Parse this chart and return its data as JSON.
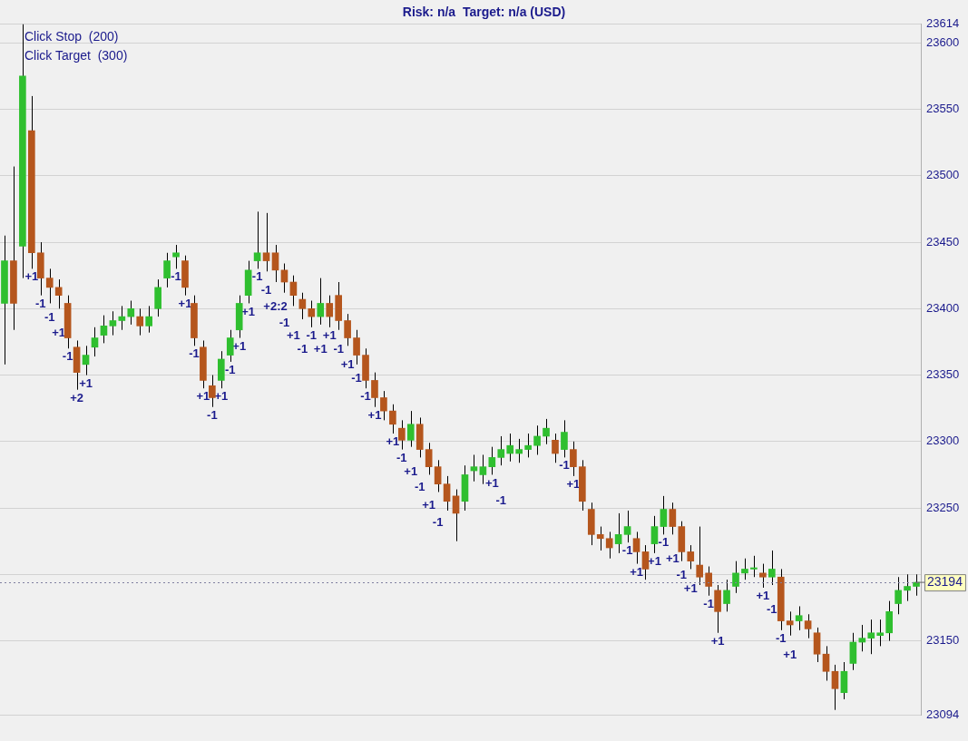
{
  "chart_data": {
    "type": "candlestick",
    "title": "Risk: n/a  Target: n/a (USD)",
    "categories": [
      null,
      null,
      null,
      null,
      null,
      null,
      null,
      null,
      null,
      null,
      null,
      null,
      null,
      null,
      null,
      null,
      null,
      null,
      null,
      null,
      null,
      null,
      null,
      null,
      null,
      null,
      null,
      null,
      null,
      null,
      null,
      null,
      null,
      null,
      null,
      null,
      null,
      null,
      null,
      null,
      null,
      null,
      null,
      null,
      null,
      null,
      null,
      null,
      null,
      null,
      null,
      null,
      null,
      null,
      null,
      null,
      null,
      null,
      null,
      null,
      null,
      null,
      null,
      null,
      null,
      null,
      null,
      null,
      null,
      null,
      null,
      null,
      null,
      null,
      null,
      null,
      null,
      null,
      null,
      null,
      null,
      null,
      null,
      null,
      null,
      null,
      null,
      null,
      null,
      null,
      null,
      null,
      null,
      null,
      null,
      null,
      null,
      null,
      null,
      null,
      null,
      null
    ],
    "value_labels": [
      null,
      null,
      null,
      "+1",
      "-1",
      "-1",
      "+1",
      "-1",
      "+2",
      "+1",
      null,
      null,
      null,
      null,
      null,
      null,
      null,
      null,
      null,
      "-1",
      "+1",
      "-1",
      "+1",
      "-1",
      "+1",
      "-1",
      "+1",
      "+1",
      "-1",
      "-1",
      "+2:2",
      "-1",
      "+1",
      "-1",
      "-1",
      "+1",
      "+1",
      "-1",
      "+1",
      "-1",
      "-1",
      "+1",
      null,
      "+1",
      "-1",
      "+1",
      "-1",
      "+1",
      "-1",
      null,
      null,
      null,
      null,
      null,
      "+1",
      "-1",
      null,
      null,
      null,
      null,
      null,
      null,
      "-1",
      "+1",
      null,
      null,
      null,
      null,
      null,
      "-1",
      "+1",
      null,
      "+1",
      "-1",
      "+1",
      "-1",
      "+1",
      null,
      "-1",
      "+1",
      null,
      null,
      null,
      null,
      "+1",
      "-1",
      "-1",
      "+1",
      null,
      null,
      null,
      null,
      null,
      null,
      null,
      null,
      null,
      null,
      null,
      null,
      null,
      null
    ],
    "ohlc": [
      [
        23404,
        23455,
        23358,
        23436
      ],
      [
        23436,
        23507,
        23384,
        23404
      ],
      [
        23447,
        23614,
        23423,
        23575
      ],
      [
        23534,
        23560,
        23430,
        23442
      ],
      [
        23442,
        23450,
        23410,
        23423
      ],
      [
        23423,
        23430,
        23404,
        23416
      ],
      [
        23416,
        23422,
        23400,
        23410
      ],
      [
        23404,
        23410,
        23370,
        23378
      ],
      [
        23371,
        23376,
        23339,
        23352
      ],
      [
        23358,
        23372,
        23350,
        23365
      ],
      [
        23371,
        23386,
        23364,
        23378
      ],
      [
        23380,
        23395,
        23374,
        23387
      ],
      [
        23387,
        23398,
        23380,
        23391
      ],
      [
        23391,
        23402,
        23384,
        23394
      ],
      [
        23394,
        23406,
        23388,
        23400
      ],
      [
        23394,
        23400,
        23380,
        23387
      ],
      [
        23387,
        23402,
        23382,
        23394
      ],
      [
        23400,
        23422,
        23394,
        23416
      ],
      [
        23423,
        23442,
        23416,
        23436
      ],
      [
        23439,
        23448,
        23430,
        23442
      ],
      [
        23436,
        23440,
        23410,
        23416
      ],
      [
        23404,
        23410,
        23372,
        23378
      ],
      [
        23371,
        23376,
        23340,
        23346
      ],
      [
        23342,
        23350,
        23326,
        23333
      ],
      [
        23346,
        23368,
        23340,
        23362
      ],
      [
        23365,
        23384,
        23360,
        23378
      ],
      [
        23384,
        23410,
        23378,
        23404
      ],
      [
        23410,
        23436,
        23404,
        23429
      ],
      [
        23436,
        23473,
        23430,
        23442
      ],
      [
        23442,
        23472,
        23428,
        23436
      ],
      [
        23442,
        23448,
        23420,
        23429
      ],
      [
        23429,
        23434,
        23412,
        23420
      ],
      [
        23420,
        23425,
        23402,
        23410
      ],
      [
        23407,
        23412,
        23392,
        23400
      ],
      [
        23400,
        23406,
        23386,
        23394
      ],
      [
        23394,
        23423,
        23388,
        23404
      ],
      [
        23404,
        23410,
        23386,
        23394
      ],
      [
        23410,
        23420,
        23384,
        23391
      ],
      [
        23391,
        23396,
        23372,
        23378
      ],
      [
        23378,
        23384,
        23358,
        23365
      ],
      [
        23365,
        23370,
        23340,
        23346
      ],
      [
        23346,
        23352,
        23326,
        23333
      ],
      [
        23333,
        23338,
        23316,
        23323
      ],
      [
        23323,
        23328,
        23306,
        23313
      ],
      [
        23310,
        23316,
        23294,
        23301
      ],
      [
        23301,
        23323,
        23296,
        23313
      ],
      [
        23313,
        23318,
        23288,
        23294
      ],
      [
        23294,
        23299,
        23275,
        23281
      ],
      [
        23281,
        23286,
        23262,
        23268
      ],
      [
        23268,
        23274,
        23248,
        23255
      ],
      [
        23259,
        23264,
        23225,
        23246
      ],
      [
        23255,
        23282,
        23248,
        23275
      ],
      [
        23278,
        23290,
        23270,
        23281
      ],
      [
        23275,
        23290,
        23268,
        23281
      ],
      [
        23281,
        23296,
        23275,
        23288
      ],
      [
        23288,
        23304,
        23282,
        23294
      ],
      [
        23291,
        23306,
        23285,
        23297
      ],
      [
        23291,
        23302,
        23284,
        23294
      ],
      [
        23294,
        23306,
        23288,
        23297
      ],
      [
        23297,
        23312,
        23290,
        23304
      ],
      [
        23304,
        23317,
        23298,
        23310
      ],
      [
        23301,
        23306,
        23284,
        23291
      ],
      [
        23294,
        23316,
        23288,
        23307
      ],
      [
        23294,
        23300,
        23274,
        23281
      ],
      [
        23281,
        23286,
        23248,
        23255
      ],
      [
        23249,
        23254,
        23222,
        23230
      ],
      [
        23230,
        23236,
        23218,
        23227
      ],
      [
        23227,
        23232,
        23212,
        23220
      ],
      [
        23223,
        23246,
        23216,
        23230
      ],
      [
        23230,
        23248,
        23224,
        23236
      ],
      [
        23227,
        23232,
        23208,
        23217
      ],
      [
        23217,
        23222,
        23196,
        23204
      ],
      [
        23223,
        23244,
        23216,
        23236
      ],
      [
        23236,
        23259,
        23230,
        23249
      ],
      [
        23249,
        23254,
        23230,
        23236
      ],
      [
        23236,
        23240,
        23210,
        23217
      ],
      [
        23217,
        23222,
        23204,
        23210
      ],
      [
        23207,
        23236,
        23192,
        23198
      ],
      [
        23201,
        23206,
        23184,
        23191
      ],
      [
        23188,
        23192,
        23156,
        23172
      ],
      [
        23178,
        23196,
        23172,
        23188
      ],
      [
        23191,
        23210,
        23186,
        23201
      ],
      [
        23201,
        23212,
        23196,
        23204
      ],
      [
        23204,
        23214,
        23198,
        23205
      ],
      [
        23201,
        23208,
        23190,
        23198
      ],
      [
        23198,
        23218,
        23192,
        23204
      ],
      [
        23198,
        23204,
        23158,
        23165
      ],
      [
        23165,
        23172,
        23154,
        23162
      ],
      [
        23165,
        23176,
        23158,
        23169
      ],
      [
        23165,
        23170,
        23152,
        23159
      ],
      [
        23156,
        23160,
        23134,
        23140
      ],
      [
        23140,
        23146,
        23120,
        23127
      ],
      [
        23127,
        23132,
        23098,
        23114
      ],
      [
        23111,
        23134,
        23106,
        23127
      ],
      [
        23133,
        23156,
        23128,
        23149
      ],
      [
        23149,
        23162,
        23142,
        23152
      ],
      [
        23152,
        23166,
        23140,
        23156
      ],
      [
        23154,
        23166,
        23146,
        23156
      ],
      [
        23156,
        23180,
        23150,
        23172
      ],
      [
        23178,
        23198,
        23170,
        23188
      ],
      [
        23188,
        23200,
        23180,
        23191
      ],
      [
        23191,
        23200,
        23184,
        23194
      ]
    ],
    "colors": [
      "#2fbf2f",
      "#b5561d",
      "#2fbf2f",
      "#b5561d",
      "#b5561d",
      "#b5561d",
      "#b5561d",
      "#b5561d",
      "#b5561d",
      "#2fbf2f",
      "#2fbf2f",
      "#2fbf2f",
      "#2fbf2f",
      "#2fbf2f",
      "#2fbf2f",
      "#b5561d",
      "#2fbf2f",
      "#2fbf2f",
      "#2fbf2f",
      "#2fbf2f",
      "#b5561d",
      "#b5561d",
      "#b5561d",
      "#b5561d",
      "#2fbf2f",
      "#2fbf2f",
      "#2fbf2f",
      "#2fbf2f",
      "#2fbf2f",
      "#b5561d",
      "#b5561d",
      "#b5561d",
      "#b5561d",
      "#b5561d",
      "#b5561d",
      "#2fbf2f",
      "#b5561d",
      "#b5561d",
      "#b5561d",
      "#b5561d",
      "#b5561d",
      "#b5561d",
      "#b5561d",
      "#b5561d",
      "#b5561d",
      "#2fbf2f",
      "#b5561d",
      "#b5561d",
      "#b5561d",
      "#b5561d",
      "#b5561d",
      "#2fbf2f",
      "#2fbf2f",
      "#2fbf2f",
      "#2fbf2f",
      "#2fbf2f",
      "#2fbf2f",
      "#2fbf2f",
      "#2fbf2f",
      "#2fbf2f",
      "#2fbf2f",
      "#b5561d",
      "#2fbf2f",
      "#b5561d",
      "#b5561d",
      "#b5561d",
      "#b5561d",
      "#b5561d",
      "#2fbf2f",
      "#2fbf2f",
      "#b5561d",
      "#b5561d",
      "#2fbf2f",
      "#2fbf2f",
      "#b5561d",
      "#b5561d",
      "#b5561d",
      "#b5561d",
      "#b5561d",
      "#b5561d",
      "#2fbf2f",
      "#2fbf2f",
      "#2fbf2f",
      "#2fbf2f",
      "#b5561d",
      "#2fbf2f",
      "#b5561d",
      "#b5561d",
      "#2fbf2f",
      "#b5561d",
      "#b5561d",
      "#b5561d",
      "#b5561d",
      "#2fbf2f",
      "#2fbf2f",
      "#2fbf2f",
      "#2fbf2f",
      "#2fbf2f",
      "#2fbf2f",
      "#2fbf2f",
      "#2fbf2f",
      "#2fbf2f"
    ],
    "ylim": [
      23094,
      23614
    ],
    "yticks": [
      23094,
      23150,
      {
        "value": 23200,
        "label": null
      },
      23250,
      23300,
      23350,
      23400,
      23450,
      23500,
      23550,
      23600,
      23614
    ],
    "grid": "y",
    "legend": false,
    "ref_lines": [
      {
        "axis": "y",
        "value": 23194,
        "label": "23194",
        "color": "#8080a0"
      }
    ],
    "annotations": [
      "Click Stop  (200)",
      "Click Target  (300)"
    ]
  }
}
